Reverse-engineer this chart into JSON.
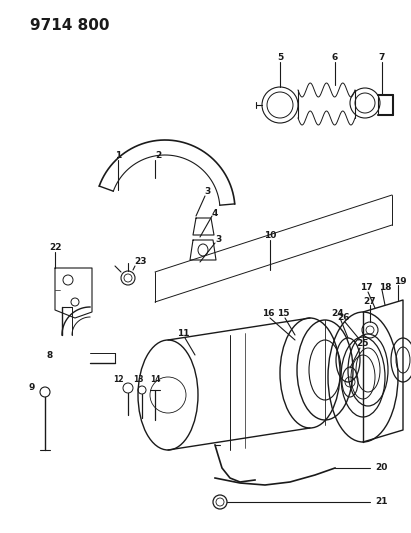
{
  "title": "9714 800",
  "bg": "#ffffff",
  "lc": "#1a1a1a",
  "fig_w": 4.11,
  "fig_h": 5.33,
  "dpi": 100
}
